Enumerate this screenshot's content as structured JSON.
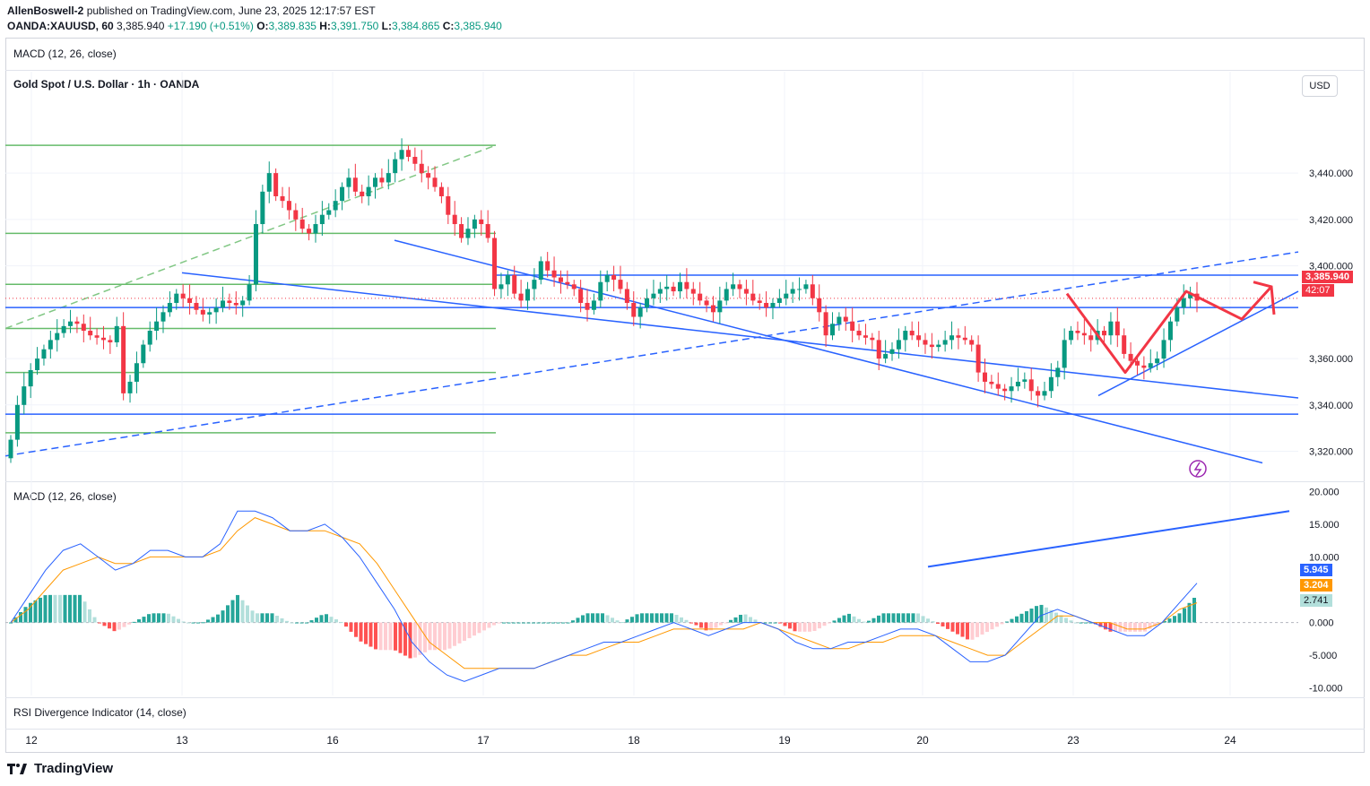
{
  "header": {
    "author": "AllenBoswell-2",
    "published_text": "published on TradingView.com, June 23, 2025 12:17:57 EST",
    "symbol_line": "OANDA:XAUUSD, 60",
    "last": "3,385.940",
    "change": "+17.190 (+0.51%)",
    "o_label": "O:",
    "o": "3,389.835",
    "h_label": "H:",
    "h": "3,391.750",
    "l_label": "L:",
    "l": "3,384.865",
    "c_label": "C:",
    "c": "3,385.940"
  },
  "panes": {
    "top_indicator_label": "MACD (12, 26, close)",
    "main_title": "Gold Spot / U.S. Dollar · 1h · OANDA",
    "currency_button": "USD",
    "macd_label": "MACD (12, 26, close)",
    "rsi_label": "RSI Divergence Indicator (14, close)"
  },
  "price_tag": {
    "price": "3,385.940",
    "countdown": "42:07",
    "color": "#f23645"
  },
  "macd_tags": {
    "macd": "5.945",
    "signal": "3.204",
    "hist": "2.741"
  },
  "footer": {
    "brand": "TradingView"
  },
  "colors": {
    "up": "#089981",
    "down": "#f23645",
    "trend": "#2962ff",
    "level": "#66bb6a",
    "macd": "#2962ff",
    "signal": "#ff9800"
  },
  "chart_data": [
    {
      "type": "candlestick",
      "title": "Gold Spot / U.S. Dollar · 1h · OANDA",
      "x_ticks": [
        "12",
        "13",
        "16",
        "17",
        "18",
        "19",
        "20",
        "23",
        "24"
      ],
      "y_ticks": [
        "3,440.000",
        "3,420.000",
        "3,400.000",
        "3,360.000",
        "3,340.000",
        "3,320.000"
      ],
      "ylim": [
        3309,
        3476
      ],
      "close_series": [
        3325,
        3340,
        3348,
        3355,
        3360,
        3364,
        3368,
        3371,
        3374,
        3376,
        3375,
        3372,
        3370,
        3369,
        3368,
        3367,
        3374,
        3345,
        3350,
        3358,
        3366,
        3372,
        3376,
        3380,
        3384,
        3388,
        3386,
        3384,
        3381,
        3379,
        3380,
        3382,
        3385,
        3384,
        3383,
        3385,
        3392,
        3418,
        3432,
        3440,
        3430,
        3428,
        3424,
        3420,
        3416,
        3414,
        3418,
        3422,
        3424,
        3428,
        3434,
        3438,
        3432,
        3430,
        3434,
        3438,
        3436,
        3440,
        3446,
        3450,
        3447,
        3444,
        3440,
        3438,
        3434,
        3430,
        3422,
        3418,
        3412,
        3416,
        3420,
        3418,
        3412,
        3390,
        3392,
        3396,
        3388,
        3385,
        3390,
        3394,
        3402,
        3398,
        3395,
        3393,
        3392,
        3390,
        3384,
        3381,
        3385,
        3393,
        3396,
        3394,
        3390,
        3384,
        3378,
        3382,
        3386,
        3388,
        3390,
        3391,
        3389,
        3393,
        3390,
        3388,
        3385,
        3383,
        3380,
        3385,
        3390,
        3392,
        3390,
        3388,
        3385,
        3384,
        3382,
        3384,
        3386,
        3388,
        3390,
        3390,
        3392,
        3386,
        3380,
        3370,
        3375,
        3378,
        3376,
        3372,
        3370,
        3369,
        3368,
        3360,
        3362,
        3364,
        3368,
        3372,
        3370,
        3368,
        3366,
        3365,
        3366,
        3368,
        3370,
        3369,
        3368,
        3366,
        3354,
        3350,
        3349,
        3347,
        3346,
        3348,
        3350,
        3351,
        3346,
        3344,
        3346,
        3352,
        3356,
        3368,
        3372,
        3371,
        3370,
        3368,
        3372,
        3370,
        3376,
        3370,
        3362,
        3359,
        3357,
        3356,
        3358,
        3360,
        3368,
        3376,
        3382,
        3386,
        3388,
        3385
      ],
      "levels": [
        3452,
        3414,
        3392,
        3373,
        3354,
        3328
      ],
      "horizontal_blue": [
        3396,
        3382,
        3336
      ]
    },
    {
      "type": "line",
      "title": "MACD (12, 26, close)",
      "series": [
        {
          "name": "MACD",
          "values": [
            0,
            4,
            8,
            11,
            12,
            10,
            8,
            9,
            11,
            11,
            10,
            10,
            12,
            17,
            17,
            16,
            14,
            14,
            15,
            13,
            10,
            6,
            2,
            -3,
            -6,
            -8,
            -9,
            -8,
            -7,
            -7,
            -7,
            -6,
            -5,
            -4,
            -3,
            -3,
            -2,
            -1,
            0,
            -1,
            -2,
            -1,
            0,
            0,
            -1,
            -3,
            -4,
            -4,
            -3,
            -3,
            -2,
            -1,
            -1,
            -2,
            -4,
            -6,
            -6,
            -5,
            -2,
            1,
            2,
            1,
            0,
            -1,
            -2,
            -2,
            0,
            3,
            6
          ]
        },
        {
          "name": "Signal",
          "values": [
            0,
            2,
            5,
            8,
            9,
            10,
            9,
            9,
            10,
            10,
            10,
            10,
            11,
            14,
            16,
            15,
            14,
            14,
            14,
            13,
            12,
            9,
            5,
            1,
            -3,
            -5,
            -7,
            -7,
            -7,
            -7,
            -7,
            -6,
            -5,
            -5,
            -4,
            -3,
            -3,
            -2,
            -1,
            -1,
            -1,
            -1,
            -1,
            0,
            -1,
            -2,
            -3,
            -4,
            -4,
            -3,
            -3,
            -2,
            -2,
            -2,
            -3,
            -4,
            -5,
            -5,
            -3,
            -1,
            1,
            1,
            0,
            0,
            -1,
            -1,
            0,
            2,
            3
          ]
        }
      ],
      "y_ticks": [
        "20.000",
        "15.000",
        "10.000",
        "0.000",
        "-5.000",
        "-10.000"
      ],
      "ylim": [
        -11,
        21
      ]
    }
  ]
}
